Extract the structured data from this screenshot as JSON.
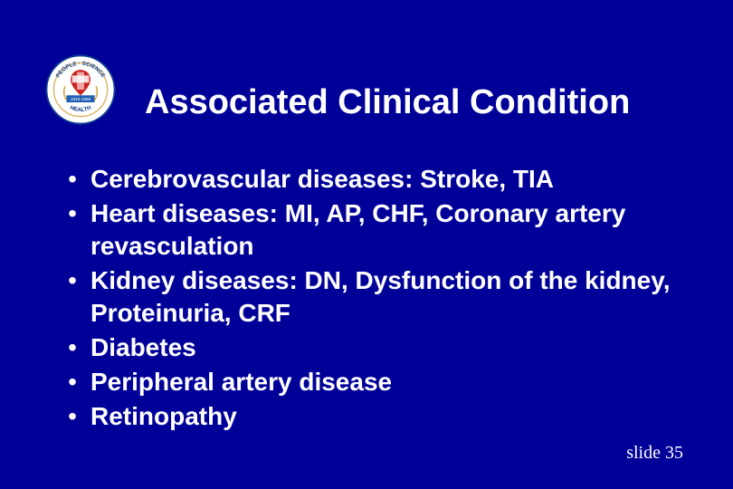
{
  "colors": {
    "background": "#000099",
    "text": "#ffffff",
    "logo_outer_ring": "#0a3a8a",
    "logo_inner": "#ffffff",
    "logo_red": "#cc2222",
    "logo_gold": "#d4a84a",
    "logo_blue_band": "#1e5fb4"
  },
  "typography": {
    "title_fontsize": 38,
    "title_weight": "bold",
    "body_fontsize": 28,
    "body_weight": "bold",
    "footer_fontsize": 20,
    "footer_family": "Times New Roman"
  },
  "title": "Associated Clinical Condition",
  "bullets": [
    "Cerebrovascular diseases: Stroke, TIA",
    "Heart diseases: MI, AP, CHF, Coronary artery revasculation",
    "Kidney diseases: DN, Dysfunction of the kidney, Proteinuria, CRF",
    "Diabetes",
    "Peripheral artery disease",
    "Retinopathy"
  ],
  "logo": {
    "outer_text_top": "PEOPLE · SCIENCE",
    "outer_text_bottom": "HEALTH",
    "inner_text": "1948-1998"
  },
  "footer": {
    "label": "slide",
    "number": 35
  }
}
